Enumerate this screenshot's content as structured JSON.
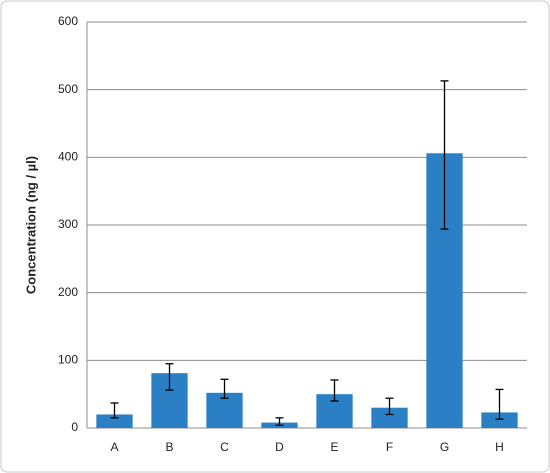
{
  "chart_data": {
    "type": "bar",
    "y_label": "Concentration (ng / µl)",
    "categories": [
      "A",
      "B",
      "C",
      "D",
      "E",
      "F",
      "G",
      "H"
    ],
    "values": [
      20,
      81,
      52,
      8,
      50,
      30,
      406,
      23
    ],
    "error_low": [
      5,
      25,
      8,
      4,
      10,
      10,
      112,
      10
    ],
    "error_high": [
      17,
      14,
      20,
      7,
      21,
      14,
      107,
      34
    ],
    "color": "#2b80c5",
    "ylim": [
      0,
      600
    ],
    "yticks": [
      0,
      100,
      200,
      300,
      400,
      500,
      600
    ],
    "grid": true
  }
}
